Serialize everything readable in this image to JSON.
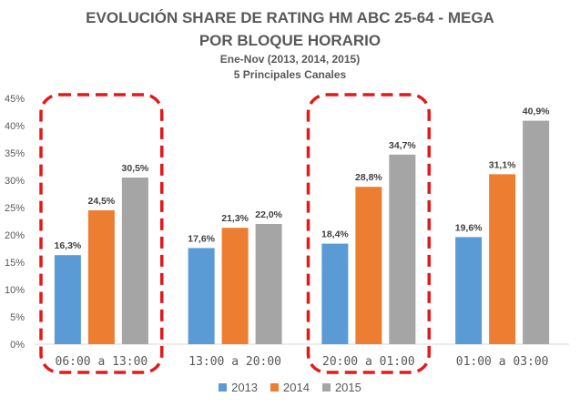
{
  "chart_data": {
    "type": "bar",
    "title": "EVOLUCIÓN SHARE DE RATING HM ABC 25-64 - MEGA",
    "title_line2": "POR BLOQUE HORARIO",
    "subtitle": "Ene-Nov (2013, 2014, 2015)",
    "subtitle2": "5 Principales Canales",
    "categories": [
      "06:00 a 13:00",
      "13:00 a 20:00",
      "20:00 a 01:00",
      "01:00 a 03:00"
    ],
    "series": [
      {
        "name": "2013",
        "color": "#5b9bd5",
        "values": [
          16.3,
          17.6,
          18.4,
          19.6
        ],
        "labels": [
          "16,3%",
          "17,6%",
          "18,4%",
          "19,6%"
        ]
      },
      {
        "name": "2014",
        "color": "#ed7d31",
        "values": [
          24.5,
          21.3,
          28.8,
          31.1
        ],
        "labels": [
          "24,5%",
          "21,3%",
          "28,8%",
          "31,1%"
        ]
      },
      {
        "name": "2015",
        "color": "#a5a5a5",
        "values": [
          30.5,
          22.0,
          34.7,
          40.9
        ],
        "labels": [
          "30,5%",
          "22,0%",
          "34,7%",
          "40,9%"
        ]
      }
    ],
    "ylim": [
      0,
      45
    ],
    "yticks": [
      "0%",
      "5%",
      "10%",
      "15%",
      "20%",
      "25%",
      "30%",
      "35%",
      "40%",
      "45%"
    ],
    "grid": false,
    "legend_position": "bottom",
    "highlighted_categories": [
      0,
      2
    ],
    "highlight_color": "#e31a1c"
  }
}
